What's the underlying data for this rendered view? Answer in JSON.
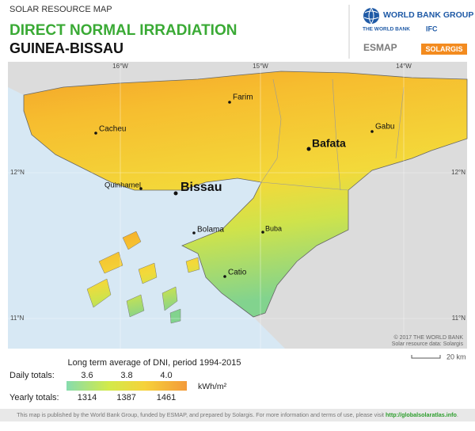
{
  "header": {
    "label": "SOLAR RESOURCE MAP",
    "title": "DIRECT NORMAL IRRADIATION",
    "country": "GUINEA-BISSAU"
  },
  "logos": {
    "world_bank_group": "WORLD BANK GROUP",
    "the_world_bank": "THE WORLD BANK",
    "ifc": "IFC",
    "esmap": "ESMAP",
    "solargis": "SOLARGIS"
  },
  "map": {
    "longitudes": [
      "16°W",
      "15°W",
      "14°W"
    ],
    "latitudes": [
      "12°N",
      "11°N"
    ],
    "cities": [
      {
        "name": "Farim"
      },
      {
        "name": "Cacheu"
      },
      {
        "name": "Gabu"
      },
      {
        "name": "Bafata"
      },
      {
        "name": "Quinhamel"
      },
      {
        "name": "Bissau"
      },
      {
        "name": "Bolama"
      },
      {
        "name": "Buba"
      },
      {
        "name": "Catio"
      }
    ],
    "credits": [
      "© 2017 THE WORLD BANK",
      "Solar resource data: Solargis"
    ],
    "scale": "20 km"
  },
  "legend": {
    "title": "Long term average of DNI, period 1994-2015",
    "daily_label": "Daily totals:",
    "daily_ticks": [
      3.6,
      3.8,
      {
        "value": 4,
        "label": "4.0"
      }
    ],
    "unit": "kWh/m²",
    "yearly_label": "Yearly totals:",
    "yearly_ticks": [
      1314,
      1387,
      1461
    ]
  },
  "footer": {
    "text": "This map is published by the World Bank Group, funded by ESMAP, and prepared by Solargis. For more information and terms of use, please visit ",
    "link": "http://globalsolaratlas.info",
    "end": "."
  }
}
